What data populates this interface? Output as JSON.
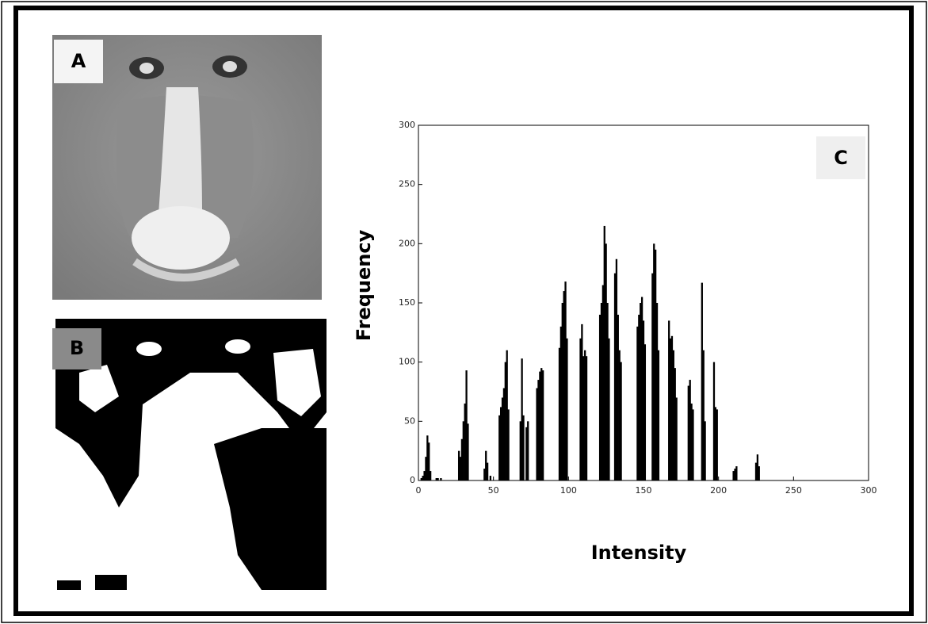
{
  "panels": [
    {
      "label": "A"
    },
    {
      "label": "B"
    }
  ],
  "chart_data": {
    "type": "bar",
    "panel_label": "C",
    "xlabel": "Intensity",
    "ylabel": "Frequency",
    "color": "#000000",
    "xlim": [
      0,
      300
    ],
    "ylim": [
      0,
      300
    ],
    "xticks": [
      0,
      50,
      100,
      150,
      200,
      250,
      300
    ],
    "yticks": [
      0,
      50,
      100,
      150,
      200,
      250,
      300
    ],
    "x": [
      2,
      3,
      4,
      5,
      6,
      7,
      8,
      12,
      13,
      15,
      27,
      28,
      29,
      30,
      31,
      32,
      33,
      44,
      45,
      46,
      48,
      54,
      55,
      56,
      57,
      58,
      59,
      60,
      68,
      69,
      70,
      72,
      73,
      79,
      80,
      81,
      82,
      83,
      94,
      95,
      96,
      97,
      98,
      99,
      108,
      109,
      110,
      111,
      112,
      121,
      122,
      123,
      124,
      125,
      126,
      127,
      131,
      132,
      133,
      134,
      135,
      146,
      147,
      148,
      149,
      150,
      151,
      156,
      157,
      158,
      159,
      160,
      167,
      168,
      169,
      170,
      171,
      172,
      180,
      181,
      182,
      183,
      189,
      190,
      191,
      197,
      198,
      199,
      210,
      211,
      212,
      225,
      226,
      227
    ],
    "values": [
      2,
      4,
      8,
      20,
      38,
      32,
      8,
      2,
      2,
      2,
      25,
      20,
      35,
      50,
      65,
      93,
      48,
      10,
      25,
      15,
      4,
      55,
      62,
      70,
      78,
      100,
      110,
      60,
      50,
      103,
      55,
      45,
      50,
      78,
      85,
      92,
      95,
      93,
      112,
      130,
      150,
      160,
      168,
      120,
      120,
      132,
      105,
      110,
      105,
      140,
      150,
      165,
      215,
      200,
      150,
      120,
      175,
      187,
      140,
      110,
      100,
      130,
      140,
      150,
      155,
      135,
      115,
      175,
      200,
      195,
      150,
      110,
      135,
      120,
      122,
      110,
      95,
      70,
      80,
      85,
      65,
      60,
      167,
      110,
      50,
      100,
      62,
      60,
      8,
      10,
      12,
      15,
      22,
      12
    ]
  }
}
